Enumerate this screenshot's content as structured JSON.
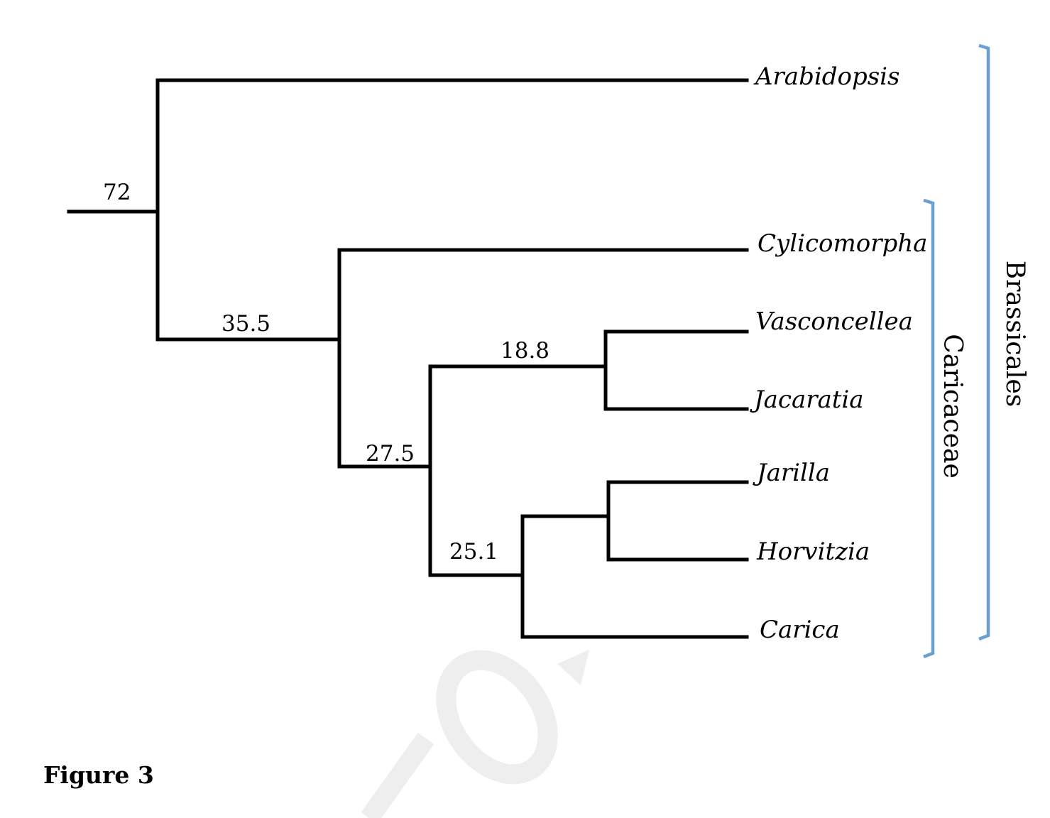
{
  "tree": {
    "node_ages": [
      "72",
      "35.5",
      "27.5",
      "18.8",
      "25.1"
    ],
    "taxa": [
      "Arabidopsis",
      "Cylicomorpha",
      "Vasconcellea",
      "Jacaratia",
      "Jarilla",
      "Horvitzia",
      "Carica"
    ]
  },
  "clades": [
    {
      "name": "Caricaceae",
      "color": "#6b9fd0"
    },
    {
      "name": "Brassicales",
      "color": "#6b9fd0"
    }
  ],
  "caption": "Figure 3"
}
